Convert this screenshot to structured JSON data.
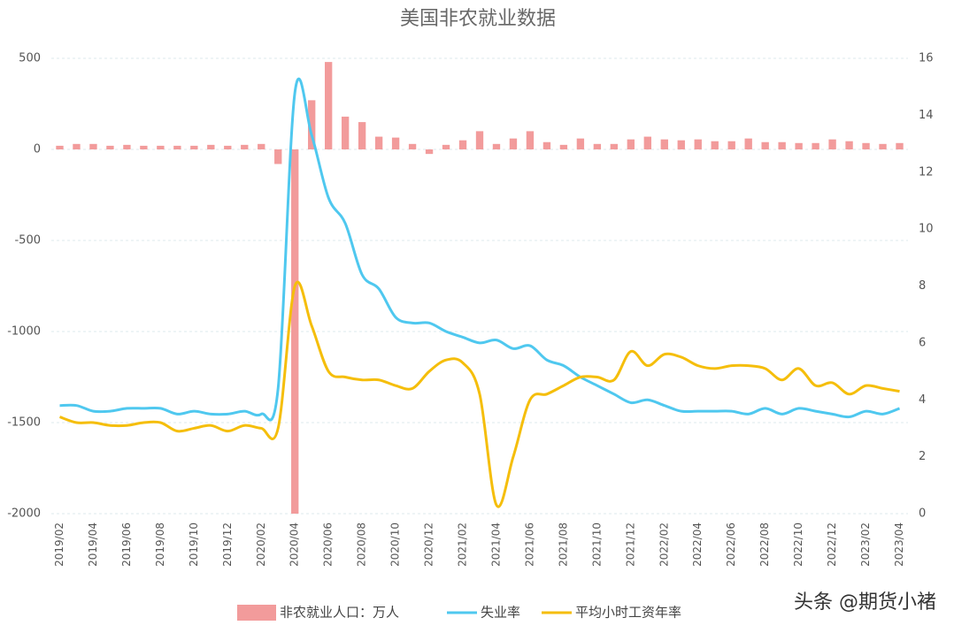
{
  "chart_data": {
    "type": "combo",
    "title": "美国非农就业数据",
    "categories": [
      "2019/02",
      null,
      "2019/04",
      null,
      "2019/06",
      null,
      "2019/08",
      null,
      "2019/10",
      null,
      "2019/12",
      null,
      "2020/02",
      null,
      "2020/04",
      null,
      "2020/06",
      null,
      "2020/08",
      null,
      "2020/10",
      null,
      "2020/12",
      null,
      "2021/02",
      null,
      "2021/04",
      null,
      "2021/06",
      null,
      "2021/08",
      null,
      "2021/10",
      null,
      "2021/12",
      null,
      "2022/02",
      null,
      "2022/04",
      null,
      "2022/06",
      null,
      "2022/08",
      null,
      "2022/10",
      null,
      "2022/12",
      null,
      "2023/02",
      null,
      "2023/04"
    ],
    "series": [
      {
        "name": "非农就业人口：万人",
        "type": "bar",
        "color": "#f29b9b",
        "values": [
          20,
          30,
          30,
          20,
          25,
          20,
          20,
          20,
          20,
          25,
          20,
          25,
          30,
          -80,
          -2000,
          270,
          480,
          180,
          150,
          70,
          65,
          30,
          -25,
          25,
          50,
          100,
          30,
          60,
          100,
          40,
          25,
          60,
          30,
          30,
          55,
          70,
          55,
          50,
          55,
          45,
          45,
          60,
          40,
          40,
          35,
          35,
          55,
          45,
          35,
          30,
          35
        ]
      },
      {
        "name": "失业率",
        "type": "line",
        "axis": "y2",
        "color": "#4fc8ef",
        "values": [
          3.8,
          3.8,
          3.6,
          3.6,
          3.7,
          3.7,
          3.7,
          3.5,
          3.6,
          3.5,
          3.5,
          3.6,
          3.5,
          4.4,
          14.8,
          13.3,
          11.1,
          10.2,
          8.4,
          7.9,
          6.9,
          6.7,
          6.7,
          6.4,
          6.2,
          6.0,
          6.1,
          5.8,
          5.9,
          5.4,
          5.2,
          4.8,
          4.5,
          4.2,
          3.9,
          4.0,
          3.8,
          3.6,
          3.6,
          3.6,
          3.6,
          3.5,
          3.7,
          3.5,
          3.7,
          3.6,
          3.5,
          3.4,
          3.6,
          3.5,
          3.7
        ]
      },
      {
        "name": "平均小时工资年率",
        "type": "line",
        "axis": "y2",
        "color": "#f5be0b",
        "values": [
          3.4,
          3.2,
          3.2,
          3.1,
          3.1,
          3.2,
          3.2,
          2.9,
          3.0,
          3.1,
          2.9,
          3.1,
          3.0,
          3.0,
          8.0,
          6.6,
          5.0,
          4.8,
          4.7,
          4.7,
          4.5,
          4.4,
          5.0,
          5.4,
          5.3,
          4.2,
          0.3,
          2.0,
          4.0,
          4.2,
          4.5,
          4.8,
          4.8,
          4.7,
          5.7,
          5.2,
          5.6,
          5.5,
          5.2,
          5.1,
          5.2,
          5.2,
          5.1,
          4.7,
          5.1,
          4.5,
          4.6,
          4.2,
          4.5,
          4.4,
          4.3
        ]
      }
    ],
    "ylim": [
      -2000,
      500
    ],
    "yticks": [
      -2000,
      -1500,
      -1000,
      -500,
      0,
      500
    ],
    "y2lim": [
      0,
      16
    ],
    "y2ticks": [
      0,
      2,
      4,
      6,
      8,
      10,
      12,
      14,
      16
    ],
    "grid": true,
    "legend": "bottom",
    "watermark": "头条 @期货小褚"
  }
}
